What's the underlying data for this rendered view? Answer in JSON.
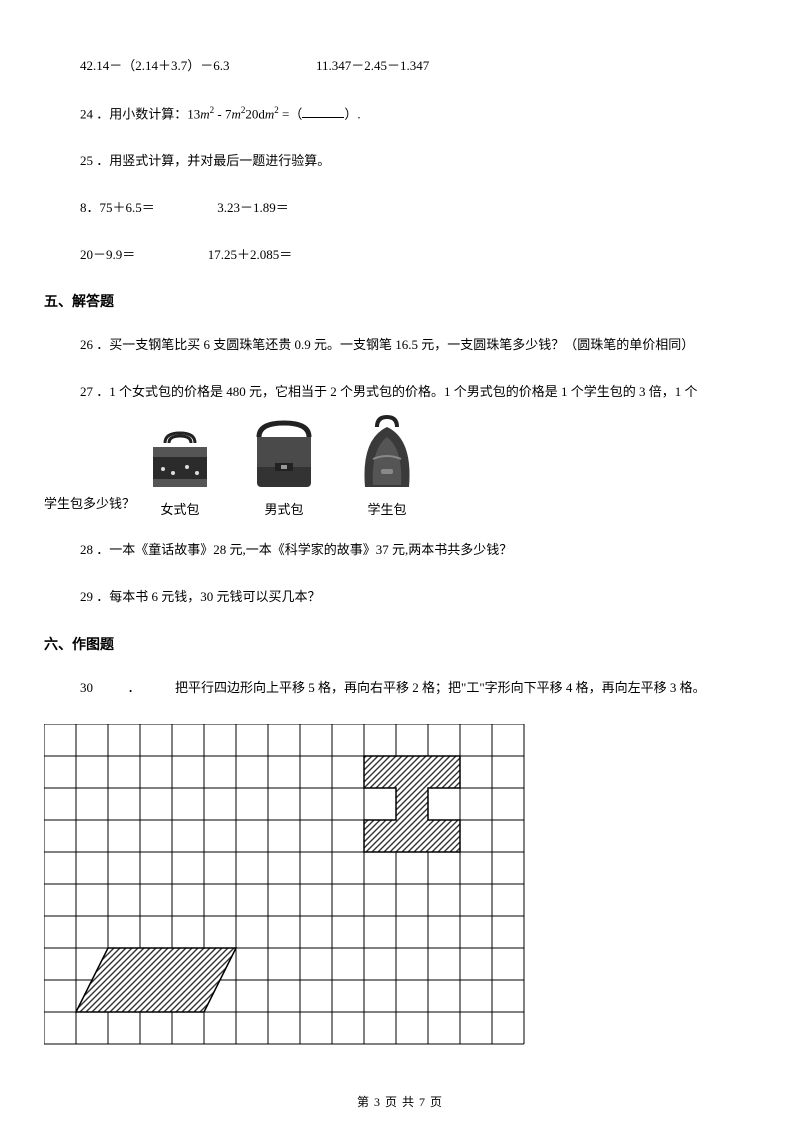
{
  "lines": {
    "l1a": "42.14－（2.14＋3.7）－6.3",
    "l1b": "11.347－2.45－1.347",
    "q24_pre": "24 ．用小数计算：13",
    "q24_mid1": " - 7",
    "q24_mid2": "20d",
    "q24_post": " =（",
    "q24_end": "）.",
    "m2": "m",
    "two": "2",
    "q25": "25 ．用竖式计算，并对最后一题进行验算。",
    "q25a": "8．75＋6.5＝",
    "q25b": "3.23－1.89＝",
    "q25c": "20－9.9＝",
    "q25d": "17.25＋2.085＝",
    "sec5": "五、解答题",
    "q26": "26 ．买一支钢笔比买 6 支圆珠笔还贵 0.9 元。一支钢笔 16.5 元，一支圆珠笔多少钱？（圆珠笔的单价相同）",
    "q27": "27 ．1 个女式包的价格是 480 元，它相当于 2 个男式包的价格。1 个男式包的价格是 1 个学生包的 3 倍，1 个",
    "q27tail": "学生包多少钱？",
    "bag1": "女式包",
    "bag2": "男式包",
    "bag3": "学生包",
    "q28": "28 ．一本《童话故事》28 元,一本《科学家的故事》37 元,两本书共多少钱？",
    "q29": "29 ．每本书 6 元钱，30 元钱可以买几本？",
    "sec6": "六、作图题",
    "q30a": "30",
    "q30b": "．",
    "q30c": "把平行四边形向上平移 5 格，再向右平移 2 格；把\"工\"字形向下平移 4 格，再向左平移 3 格。"
  },
  "footer": "第 3 页 共 7 页",
  "grid": {
    "cols": 15,
    "rows": 10,
    "cell": 32,
    "border_color": "#000000",
    "line_width": 1,
    "hatch_fill": "#444444",
    "shapes": {
      "parallelogram": {
        "comment": "bottom-left, slanted, row index 7-8 (0-based from top), base cols 1..4 bottom row, shifted right one col on top row",
        "points_cell": [
          [
            1,
            9
          ],
          [
            5,
            9
          ],
          [
            6,
            7
          ],
          [
            2,
            7
          ]
        ]
      },
      "gong": {
        "comment": "工 shape top-right area",
        "rects_cell": [
          [
            10,
            1,
            13,
            2
          ],
          [
            11,
            2,
            12,
            3
          ],
          [
            10,
            3,
            13,
            4
          ]
        ]
      }
    }
  },
  "colors": {
    "text": "#000000",
    "bg": "#ffffff"
  },
  "fontsize": {
    "body": 13,
    "section": 14,
    "footer": 12
  }
}
